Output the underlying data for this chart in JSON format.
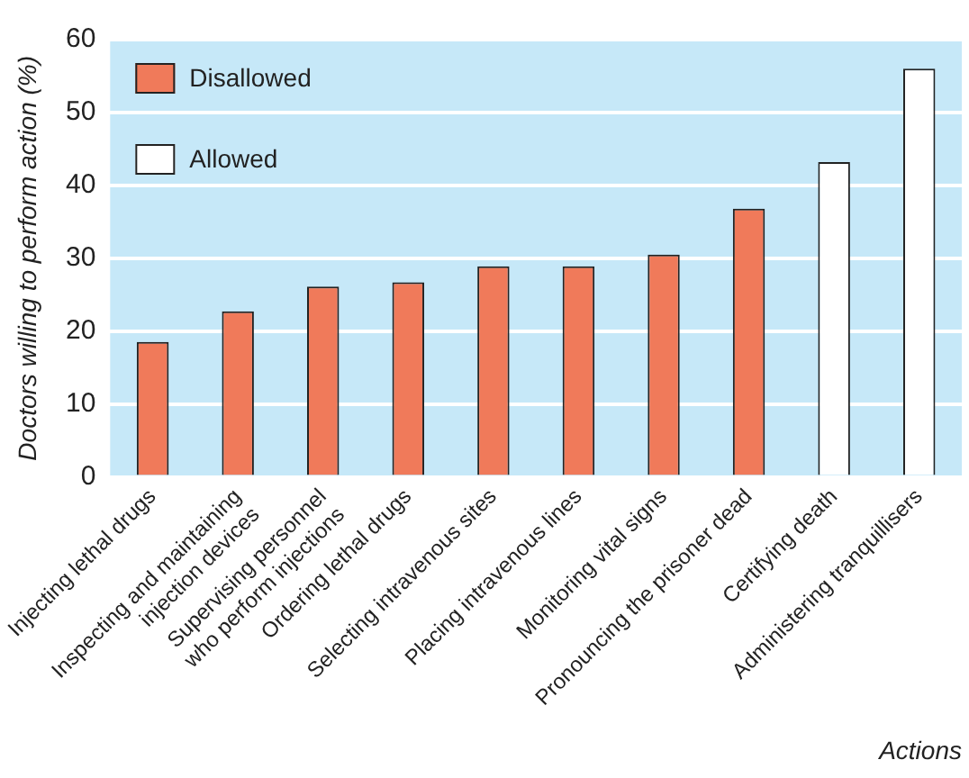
{
  "chart_data": {
    "type": "bar",
    "xlabel": "Actions",
    "ylabel": "Doctors willing to perform action (%)",
    "categories": [
      "Injecting lethal drugs",
      "Inspecting and maintaining\ninjection devices",
      "Supervising personnel\nwho perform injections",
      "Ordering lethal drugs",
      "Selecting intravenous sites",
      "Placing intravenous lines",
      "Monitoring vital signs",
      "Pronouncing the prisoner dead",
      "Certifying death",
      "Administering tranquillisers"
    ],
    "series": [
      {
        "name": "Disallowed",
        "color": "#f07a5a",
        "values": [
          18.5,
          22.7,
          26.1,
          26.7,
          28.9,
          28.9,
          30.5,
          36.8,
          null,
          null
        ]
      },
      {
        "name": "Allowed",
        "color": "#ffffff",
        "values": [
          null,
          null,
          null,
          null,
          null,
          null,
          null,
          null,
          43.2,
          56.0
        ]
      }
    ],
    "ylim": [
      0,
      60
    ],
    "yticks": [
      0,
      10,
      20,
      30,
      40,
      50,
      60
    ],
    "grid": "y",
    "legend": "top left"
  }
}
